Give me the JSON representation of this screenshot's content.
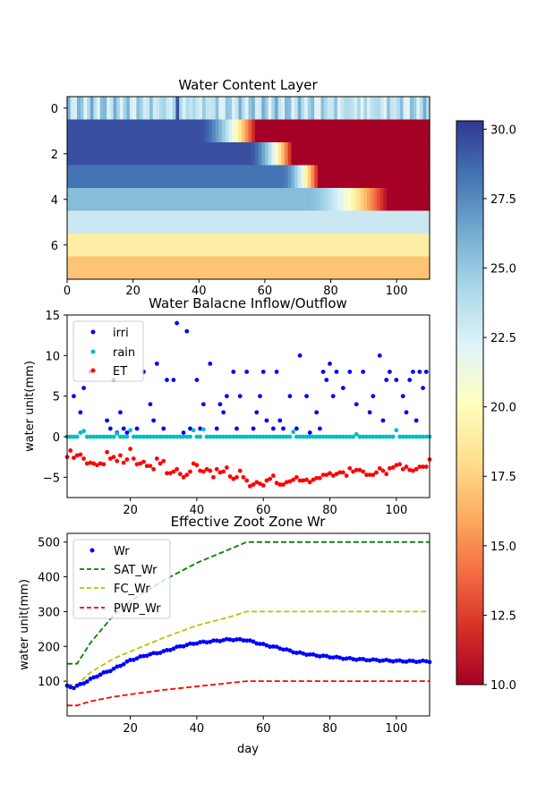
{
  "chart_data": [
    {
      "type": "heatmap",
      "title": "Water Content Layer",
      "xlim": [
        0,
        110
      ],
      "ylim": [
        7.5,
        -0.5
      ],
      "xticks": [
        0,
        20,
        40,
        60,
        80,
        100
      ],
      "yticks": [
        0,
        2,
        4,
        6
      ],
      "rows": [
        {
          "layer": 0,
          "pattern": "varying values between about 21 and 27 each day, one dark spike near day 33"
        },
        {
          "layer": 1,
          "start_value": 29.5,
          "decline_start_day": 40,
          "dry_day": 57,
          "end_value": 10.0
        },
        {
          "layer": 2,
          "start_value": 29.5,
          "decline_start_day": 55,
          "dry_day": 68,
          "end_value": 10.0
        },
        {
          "layer": 3,
          "start_value": 28.3,
          "decline_start_day": 65,
          "dry_day": 76,
          "end_value": 10.0
        },
        {
          "layer": 4,
          "start_value": 25.5,
          "decline_start_day": 73,
          "dry_day": 97,
          "end_value": 10.0
        },
        {
          "layer": 5,
          "value": 23.0
        },
        {
          "layer": 6,
          "value": 19.0
        },
        {
          "layer": 7,
          "value": 17.0
        }
      ]
    },
    {
      "type": "scatter",
      "title": "Water Balacne Inflow/Outflow",
      "ylabel": "water unit(mm)",
      "xlim": [
        1,
        110
      ],
      "ylim": [
        -7.5,
        15
      ],
      "xticks": [
        20,
        40,
        60,
        80,
        100
      ],
      "yticks": [
        -5,
        0,
        5,
        10,
        15
      ],
      "legend": "upper-left",
      "series": [
        {
          "name": "irri",
          "color": "#0000ff",
          "x": [
            3,
            5,
            6,
            8,
            13,
            14,
            15,
            16,
            17,
            18,
            19,
            22,
            24,
            26,
            27,
            28,
            30,
            31,
            33,
            34,
            36,
            37,
            38,
            40,
            41,
            42,
            44,
            46,
            47,
            48,
            49,
            51,
            52,
            53,
            55,
            57,
            58,
            59,
            60,
            61,
            63,
            64,
            65,
            66,
            68,
            70,
            71,
            73,
            74,
            76,
            77,
            78,
            79,
            80,
            81,
            82,
            84,
            86,
            88,
            90,
            92,
            93,
            95,
            96,
            97,
            98,
            100,
            102,
            103,
            104,
            105,
            106,
            107,
            108,
            109
          ],
          "y": [
            5,
            3,
            6,
            8,
            2,
            1,
            7,
            0.5,
            3,
            1,
            0.5,
            1,
            8,
            4,
            2,
            9,
            1,
            7,
            7,
            14,
            0.5,
            13,
            1,
            7,
            1,
            4,
            9,
            1,
            4,
            3,
            5,
            8,
            1,
            5,
            8,
            1,
            3,
            5,
            8,
            2,
            1,
            8,
            2,
            1,
            5,
            1,
            10,
            5,
            0.5,
            3,
            1,
            8,
            7,
            9,
            5,
            8,
            6,
            8,
            4,
            8,
            3,
            5,
            10,
            2,
            7,
            8,
            7,
            5,
            3,
            7,
            8,
            2,
            8,
            6,
            8
          ]
        },
        {
          "name": "rain",
          "color": "#00bfbf",
          "x": [
            1,
            2,
            3,
            4,
            5,
            6,
            7,
            8,
            9,
            10,
            11,
            12,
            13,
            14,
            15,
            16,
            17,
            18,
            19,
            20,
            21,
            22,
            23,
            24,
            25,
            26,
            27,
            28,
            29,
            30,
            31,
            32,
            33,
            34,
            35,
            36,
            37,
            38,
            39,
            40,
            41,
            42,
            43,
            44,
            45,
            46,
            47,
            48,
            49,
            50,
            51,
            52,
            53,
            54,
            55,
            56,
            57,
            58,
            59,
            60,
            61,
            62,
            63,
            64,
            65,
            66,
            67,
            68,
            69,
            70,
            71,
            72,
            73,
            74,
            75,
            76,
            77,
            78,
            79,
            80,
            81,
            82,
            83,
            84,
            85,
            86,
            87,
            88,
            89,
            90,
            91,
            92,
            93,
            94,
            95,
            96,
            97,
            98,
            99,
            100,
            101,
            102,
            103,
            104,
            105,
            106,
            107,
            108,
            109,
            110
          ],
          "y": [
            0,
            0,
            0,
            0,
            0.5,
            0.7,
            0,
            0,
            0,
            0,
            0,
            0,
            0,
            0,
            0,
            0.4,
            0,
            0,
            0,
            0.8,
            0,
            0,
            0,
            0,
            0,
            0,
            0,
            0,
            0,
            0,
            0,
            0,
            0,
            0,
            0,
            0,
            0,
            0,
            0.8,
            0,
            0,
            0.9,
            0,
            0,
            0,
            0,
            0,
            0,
            0,
            0,
            0,
            0,
            0,
            0,
            0,
            0,
            0,
            0,
            0,
            0,
            0,
            0,
            0,
            0,
            0,
            0,
            0,
            0,
            0.6,
            0,
            0,
            0,
            0,
            0,
            0,
            0,
            0,
            0,
            0,
            0,
            0,
            0,
            0,
            0,
            0,
            0,
            0,
            0.3,
            0,
            0,
            0,
            0,
            0,
            0,
            0,
            0,
            0,
            0,
            0,
            0.8,
            0,
            0,
            0,
            0,
            0,
            0,
            0,
            0,
            0,
            0
          ]
        },
        {
          "name": "ET",
          "color": "#ff0000",
          "x": [
            1,
            2,
            3,
            4,
            5,
            6,
            7,
            8,
            9,
            10,
            11,
            12,
            13,
            14,
            15,
            16,
            17,
            18,
            19,
            20,
            21,
            22,
            23,
            24,
            25,
            26,
            27,
            28,
            29,
            30,
            31,
            32,
            33,
            34,
            35,
            36,
            37,
            38,
            39,
            40,
            41,
            42,
            43,
            44,
            45,
            46,
            47,
            48,
            49,
            50,
            51,
            52,
            53,
            54,
            55,
            56,
            57,
            58,
            59,
            60,
            61,
            62,
            63,
            64,
            65,
            66,
            67,
            68,
            69,
            70,
            71,
            72,
            73,
            74,
            75,
            76,
            77,
            78,
            79,
            80,
            81,
            82,
            83,
            84,
            85,
            86,
            87,
            88,
            89,
            90,
            91,
            92,
            93,
            94,
            95,
            96,
            97,
            98,
            99,
            100,
            101,
            102,
            103,
            104,
            105,
            106,
            107,
            108,
            109,
            110
          ],
          "y": [
            -2.5,
            -1.7,
            -2.6,
            -2.3,
            -2.2,
            -2.7,
            -3.3,
            -3.2,
            -3.3,
            -3.5,
            -3.3,
            -3.4,
            -1.9,
            -2.7,
            -2.5,
            -3.0,
            -2.3,
            -3.2,
            -2.8,
            -1.5,
            -2.7,
            -3.4,
            -3.3,
            -3.1,
            -3.6,
            -3.6,
            -4.0,
            -2.7,
            -3.3,
            -3.0,
            -4.5,
            -4.5,
            -4.3,
            -4.0,
            -4.6,
            -5.0,
            -4.7,
            -4.3,
            -3.3,
            -3.5,
            -4.2,
            -4.3,
            -4.0,
            -4.2,
            -5.0,
            -4.0,
            -4.4,
            -4.3,
            -3.8,
            -4.9,
            -5.2,
            -5.0,
            -4.2,
            -5.0,
            -5.4,
            -6.1,
            -5.9,
            -5.6,
            -5.8,
            -6.0,
            -5.4,
            -5.2,
            -4.8,
            -5.7,
            -5.9,
            -5.9,
            -5.6,
            -5.5,
            -5.3,
            -5.0,
            -5.4,
            -5.4,
            -5.3,
            -5.6,
            -5.3,
            -5.1,
            -5.1,
            -4.7,
            -4.7,
            -4.5,
            -4.8,
            -4.6,
            -4.4,
            -4.4,
            -4.8,
            -3.9,
            -4.3,
            -4.1,
            -4.1,
            -4.3,
            -4.7,
            -4.7,
            -4.7,
            -4.4,
            -3.9,
            -4.2,
            -4.6,
            -3.9,
            -3.8,
            -3.5,
            -3.4,
            -4.0,
            -3.7,
            -4.1,
            -4.2,
            -4.0,
            -3.7,
            -3.7,
            -3.7,
            -2.8
          ]
        }
      ]
    },
    {
      "type": "line",
      "title": "Effective Zoot Zone Wr",
      "xlabel": "day",
      "ylabel": "water unit(mm)",
      "xlim": [
        1,
        110
      ],
      "ylim": [
        0,
        525
      ],
      "xticks": [
        20,
        40,
        60,
        80,
        100
      ],
      "yticks": [
        100,
        200,
        300,
        400,
        500
      ],
      "legend": "upper-left",
      "series": [
        {
          "name": "Wr",
          "style": "dots",
          "color": "#0000ff",
          "x": [
            1,
            3,
            5,
            8,
            10,
            15,
            20,
            25,
            30,
            35,
            40,
            45,
            50,
            55,
            60,
            65,
            70,
            75,
            80,
            85,
            90,
            95,
            100,
            105,
            110
          ],
          "y": [
            85,
            82,
            90,
            105,
            115,
            135,
            160,
            175,
            185,
            200,
            210,
            215,
            220,
            218,
            205,
            195,
            182,
            175,
            170,
            165,
            162,
            160,
            158,
            157,
            157
          ]
        },
        {
          "name": "SAT_Wr",
          "style": "dashed",
          "color": "#008000",
          "x": [
            1,
            4,
            8,
            15,
            20,
            30,
            40,
            50,
            55,
            110
          ],
          "y": [
            150,
            150,
            210,
            290,
            330,
            390,
            440,
            480,
            500,
            500
          ]
        },
        {
          "name": "FC_Wr",
          "style": "dashed",
          "color": "#bfbf00",
          "x": [
            1,
            4,
            8,
            15,
            20,
            30,
            40,
            50,
            55,
            110
          ],
          "y": [
            90,
            90,
            125,
            165,
            185,
            225,
            260,
            285,
            300,
            300
          ]
        },
        {
          "name": "PWP_Wr",
          "style": "dashed",
          "color": "#ff0000",
          "x": [
            1,
            4,
            8,
            15,
            20,
            30,
            40,
            50,
            55,
            110
          ],
          "y": [
            30,
            30,
            42,
            55,
            62,
            75,
            85,
            95,
            100,
            100
          ]
        }
      ]
    },
    {
      "type": "colorbar",
      "colormap": "RdYlBu",
      "range": [
        10.0,
        30.3
      ],
      "ticks": [
        "10.0",
        "12.5",
        "15.0",
        "17.5",
        "20.0",
        "22.5",
        "25.0",
        "27.5",
        "30.0"
      ]
    }
  ]
}
